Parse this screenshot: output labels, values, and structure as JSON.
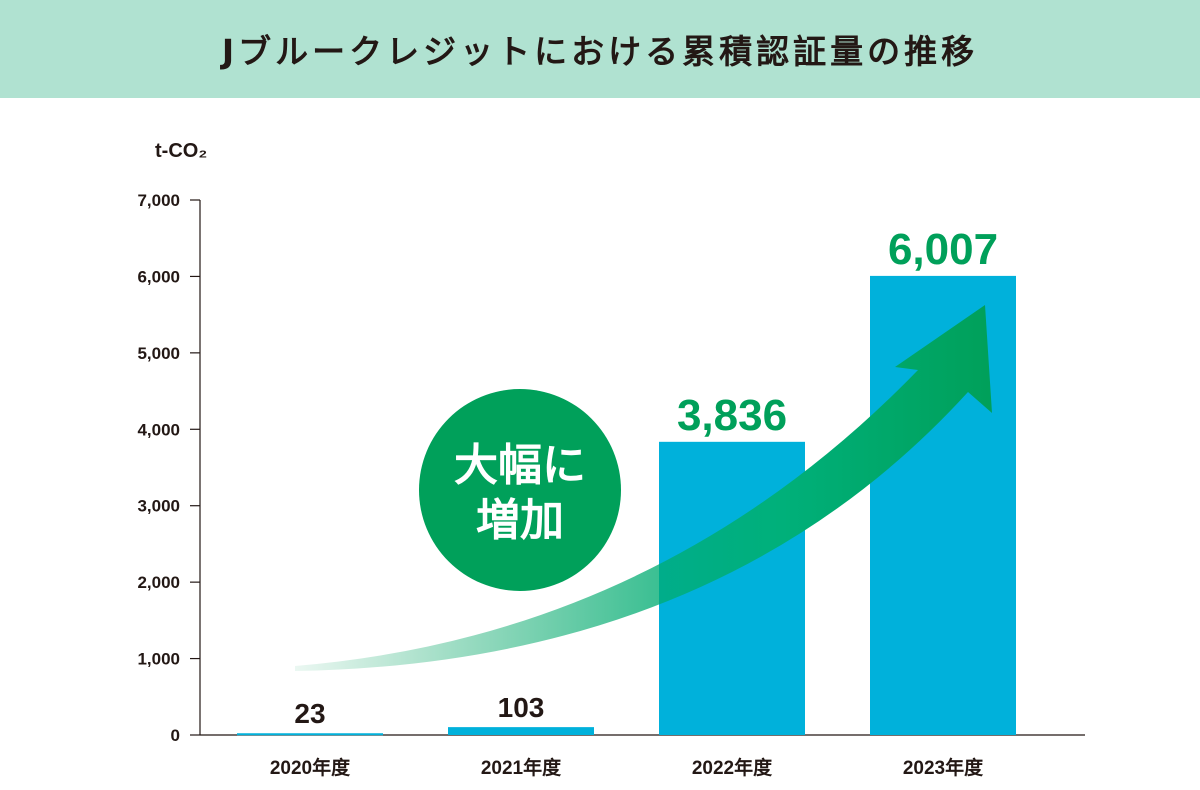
{
  "header": {
    "title": "Jブルークレジットにおける累積認証量の推移"
  },
  "chart_data": {
    "type": "bar",
    "title": "Jブルークレジットにおける累積認証量の推移",
    "ylabel": "t-CO₂",
    "xlabel": "",
    "categories": [
      "2020年度",
      "2021年度",
      "2022年度",
      "2023年度"
    ],
    "values": [
      23,
      103,
      3836,
      6007
    ],
    "value_labels": [
      "23",
      "103",
      "3,836",
      "6,007"
    ],
    "ylim": [
      0,
      7000
    ],
    "yticks": [
      0,
      1000,
      2000,
      3000,
      4000,
      5000,
      6000,
      7000
    ],
    "ytick_labels": [
      "0",
      "1,000",
      "2,000",
      "3,000",
      "4,000",
      "5,000",
      "6,000",
      "7,000"
    ],
    "grid": false,
    "annotation": {
      "line1": "大幅に",
      "line2": "増加"
    },
    "colors": {
      "bar": "#00b1db",
      "highlight_label": "#00a05a",
      "normal_label": "#231815",
      "circle": "#00a05a",
      "arrow": "#00a05a",
      "header_bg": "#b0e2d1"
    }
  }
}
